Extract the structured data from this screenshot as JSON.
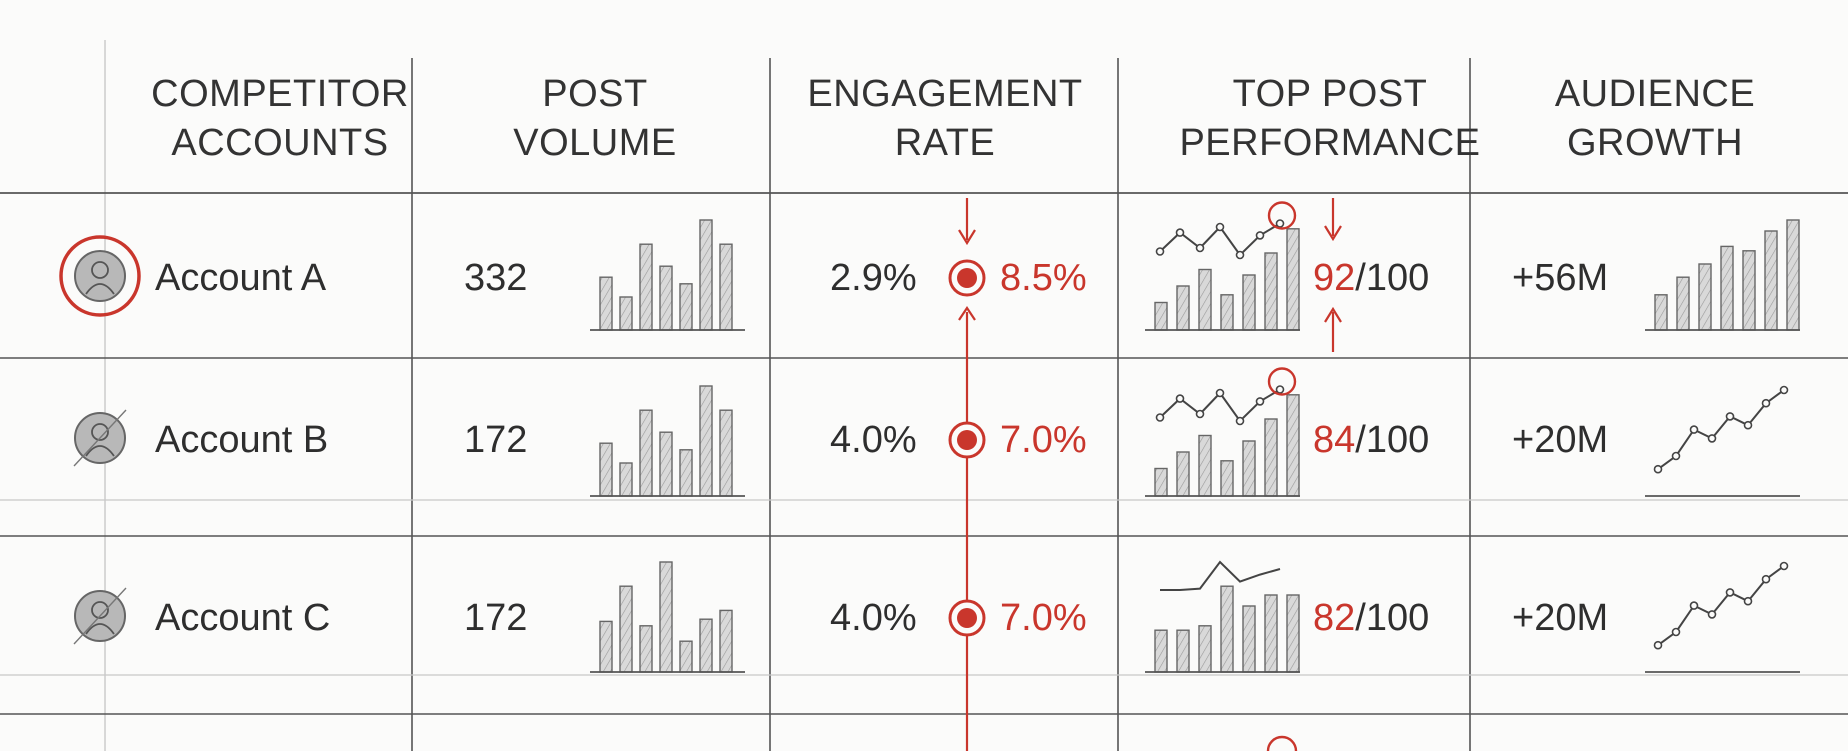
{
  "colors": {
    "accent": "#c9362c",
    "ink": "#2f2f2f",
    "rule": "#555555",
    "faint": "#c8c8c8",
    "bar_fill": "#d9d9d9"
  },
  "headers": [
    {
      "line1": "COMPETITOR",
      "line2": "ACCOUNTS"
    },
    {
      "line1": "POST",
      "line2": "VOLUME"
    },
    {
      "line1": "ENGAGEMENT",
      "line2": "RATE"
    },
    {
      "line1": "TOP POST",
      "line2": "PERFORMANCE"
    },
    {
      "line1": "AUDIENCE",
      "line2": "GROWTH"
    }
  ],
  "rows": [
    {
      "account": "Account A",
      "highlighted": true,
      "avatar_icon": "user-avatar-icon",
      "post_volume": "332",
      "volume_bars": [
        0.48,
        0.3,
        0.78,
        0.58,
        0.42,
        1.0,
        0.78
      ],
      "engagement_base": "2.9%",
      "engagement_peak": "8.5%",
      "score": "92",
      "score_suffix": "/100",
      "perf_bars": [
        0.25,
        0.4,
        0.55,
        0.32,
        0.5,
        0.7,
        0.92
      ],
      "perf_line": [
        0.55,
        0.82,
        0.6,
        0.9,
        0.5,
        0.78,
        0.95
      ],
      "growth": "+56M",
      "growth_style": "bars",
      "growth_values": [
        0.32,
        0.48,
        0.6,
        0.76,
        0.72,
        0.9,
        1.0
      ]
    },
    {
      "account": "Account B",
      "highlighted": false,
      "avatar_icon": "user-avatar-icon",
      "post_volume": "172",
      "volume_bars": [
        0.48,
        0.3,
        0.78,
        0.58,
        0.42,
        1.0,
        0.78
      ],
      "engagement_base": "4.0%",
      "engagement_peak": "7.0%",
      "score": "84",
      "score_suffix": "/100",
      "perf_bars": [
        0.25,
        0.4,
        0.55,
        0.32,
        0.5,
        0.7,
        0.92
      ],
      "perf_line": [
        0.55,
        0.82,
        0.6,
        0.9,
        0.5,
        0.78,
        0.95
      ],
      "growth": "+20M",
      "growth_style": "line",
      "growth_values": [
        0.1,
        0.25,
        0.55,
        0.45,
        0.7,
        0.6,
        0.85,
        1.0
      ]
    },
    {
      "account": "Account C",
      "highlighted": false,
      "avatar_icon": "user-avatar-icon",
      "post_volume": "172",
      "volume_bars": [
        0.46,
        0.78,
        0.42,
        1.0,
        0.28,
        0.48,
        0.56
      ],
      "engagement_base": "4.0%",
      "engagement_peak": "7.0%",
      "score": "82",
      "score_suffix": "/100",
      "perf_bars": [
        0.38,
        0.38,
        0.42,
        0.78,
        0.6,
        0.7,
        0.7
      ],
      "perf_line": [
        0.6,
        0.6,
        0.62,
        1.0,
        0.72,
        0.82,
        0.9
      ],
      "growth": "+20M",
      "growth_style": "line",
      "growth_values": [
        0.1,
        0.25,
        0.55,
        0.45,
        0.7,
        0.6,
        0.85,
        1.0
      ]
    }
  ]
}
